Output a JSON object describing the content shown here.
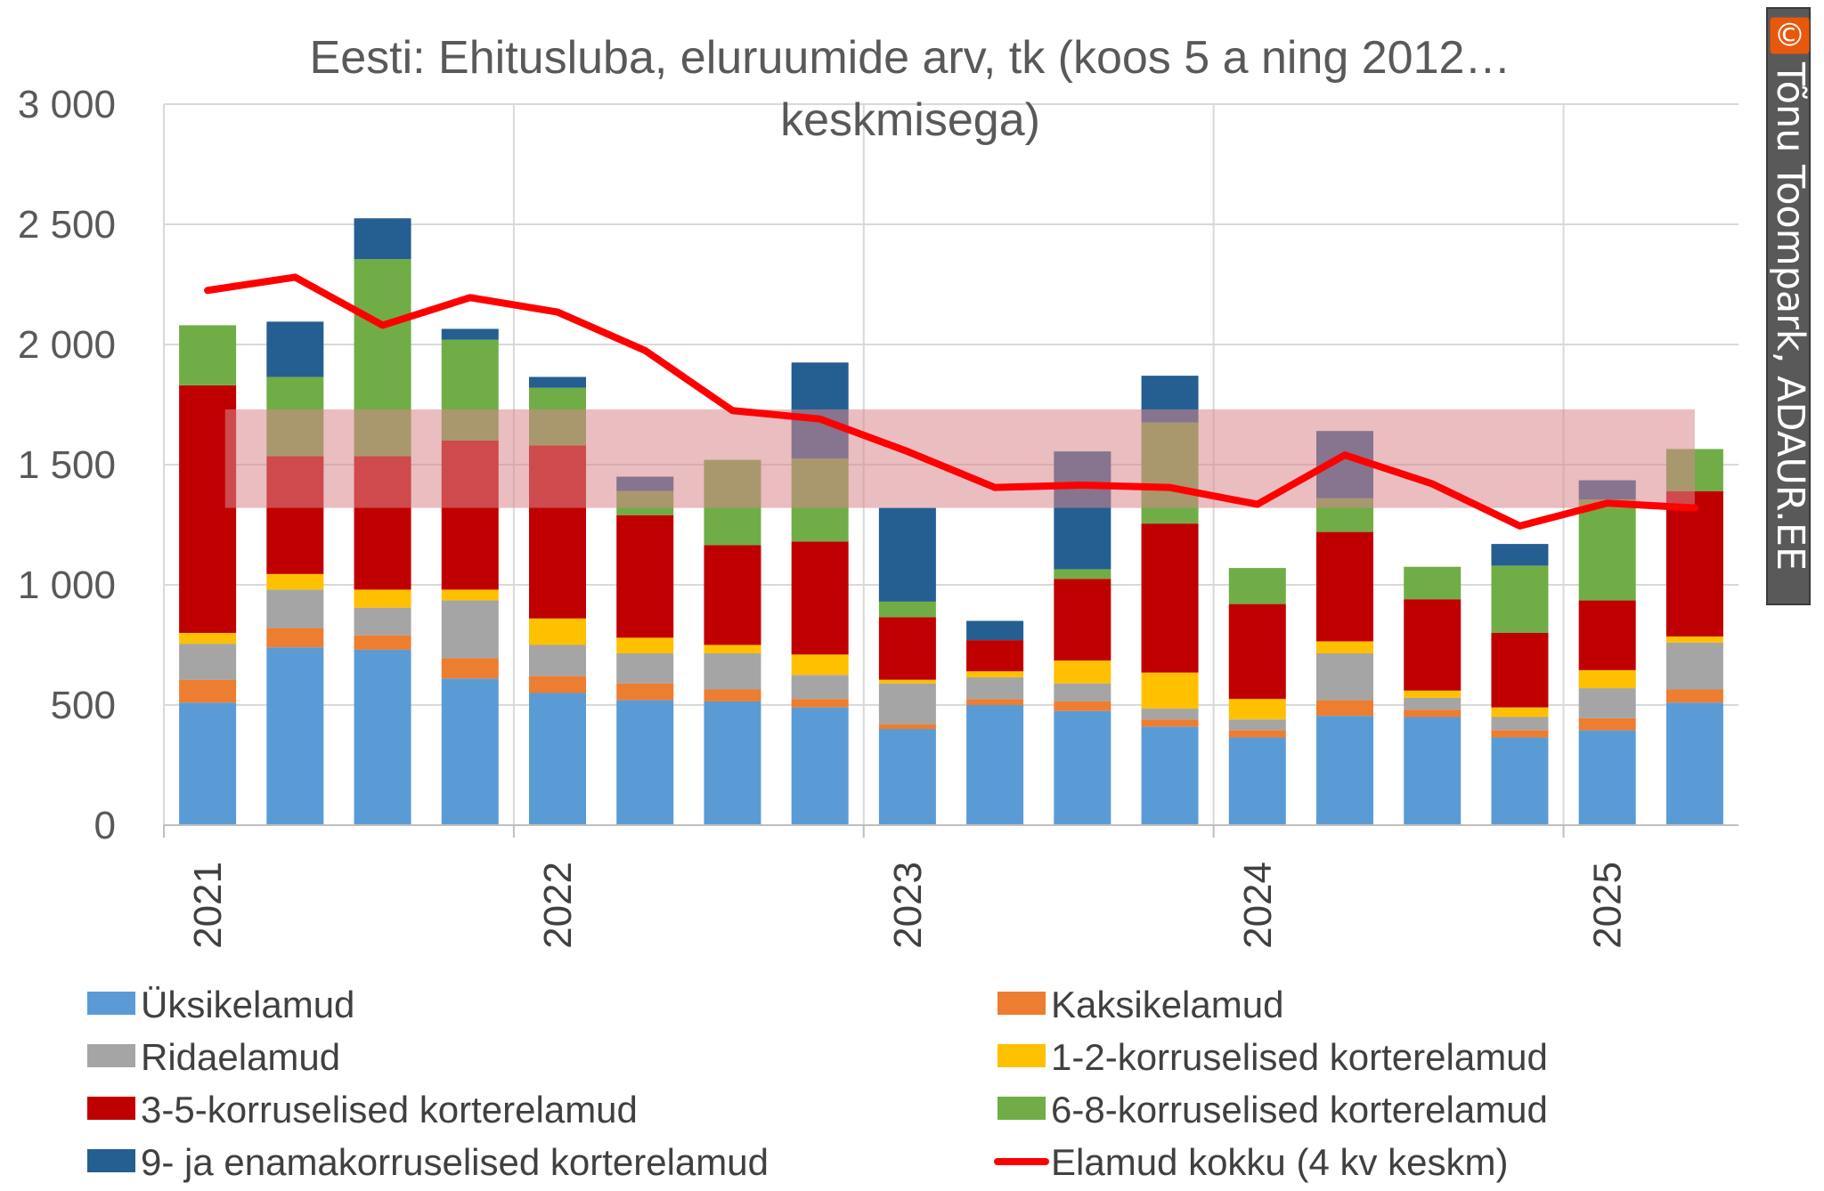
{
  "watermark": {
    "symbol": "©",
    "text": "Tõnu Toompark, ADAUR.EE"
  },
  "chart_data": {
    "type": "bar",
    "stacked": true,
    "title": "Eesti: Ehitusluba, eluruumide arv, tk (koos 5 a ning 2012… keskmisega)",
    "title_lines": [
      "Eesti: Ehitusluba, eluruumide arv, tk (koos 5 a ning 2012…",
      "keskmisega)"
    ],
    "ylim": [
      0,
      3000
    ],
    "yticks": [
      0,
      500,
      1000,
      1500,
      2000,
      2500,
      3000
    ],
    "ytick_labels": [
      "0",
      "500",
      "1 000",
      "1 500",
      "2 000",
      "2 500",
      "3 000"
    ],
    "x_year_labels": [
      "2021",
      "2022",
      "2023",
      "2024",
      "2025"
    ],
    "grid": true,
    "legend_position": "bottom",
    "band": {
      "low": 1320,
      "high": 1730,
      "color": "#d9878c"
    },
    "categories": [
      "2021 Q1",
      "2021 Q2",
      "2021 Q3",
      "2021 Q4",
      "2022 Q1",
      "2022 Q2",
      "2022 Q3",
      "2022 Q4",
      "2023 Q1",
      "2023 Q2",
      "2023 Q3",
      "2023 Q4",
      "2024 Q1",
      "2024 Q2",
      "2024 Q3",
      "2024 Q4",
      "2025 Q1",
      "2025 Q2"
    ],
    "series": [
      {
        "name": "Üksikelamud",
        "color": "#5b9bd5",
        "values": [
          510,
          740,
          730,
          610,
          550,
          520,
          515,
          490,
          400,
          500,
          475,
          410,
          365,
          455,
          450,
          365,
          395,
          510
        ]
      },
      {
        "name": "Kaksikelamud",
        "color": "#ed7d31",
        "values": [
          95,
          80,
          60,
          85,
          70,
          70,
          50,
          35,
          20,
          25,
          40,
          30,
          30,
          65,
          30,
          30,
          50,
          55
        ]
      },
      {
        "name": "Ridaelamud",
        "color": "#a5a5a5",
        "values": [
          150,
          160,
          115,
          240,
          130,
          125,
          150,
          100,
          170,
          90,
          75,
          45,
          45,
          195,
          50,
          55,
          125,
          195
        ]
      },
      {
        "name": "1-2-korruselised korterelamud",
        "color": "#ffc000",
        "values": [
          45,
          65,
          75,
          45,
          110,
          65,
          35,
          85,
          15,
          25,
          95,
          150,
          85,
          50,
          30,
          40,
          75,
          25
        ]
      },
      {
        "name": "3-5-korruselised korterelamud",
        "color": "#c00000",
        "values": [
          1030,
          490,
          555,
          620,
          720,
          510,
          415,
          470,
          260,
          130,
          340,
          620,
          395,
          455,
          380,
          310,
          290,
          605
        ]
      },
      {
        "name": "6-8-korruselised korterelamud",
        "color": "#70ad47",
        "values": [
          250,
          330,
          820,
          420,
          240,
          100,
          355,
          345,
          65,
          0,
          40,
          420,
          150,
          140,
          135,
          280,
          420,
          175
        ]
      },
      {
        "name": "9- ja enamakorruselised korterelamud",
        "color": "#255e91",
        "values": [
          0,
          230,
          170,
          45,
          45,
          60,
          0,
          400,
          390,
          80,
          490,
          195,
          0,
          280,
          0,
          90,
          80,
          0
        ]
      }
    ],
    "line": {
      "name": "Elamud kokku (4 kv keskm)",
      "color": "#ff0000",
      "values": [
        2225,
        2280,
        2080,
        2195,
        2135,
        1975,
        1725,
        1690,
        1555,
        1405,
        1415,
        1405,
        1335,
        1540,
        1420,
        1245,
        1340,
        1320
      ]
    },
    "legend": [
      "Üksikelamud",
      "Kaksikelamud",
      "Ridaelamud",
      "1-2-korruselised korterelamud",
      "3-5-korruselised korterelamud",
      "6-8-korruselised korterelamud",
      "9- ja enamakorruselised korterelamud",
      "Elamud kokku (4 kv keskm)"
    ]
  }
}
